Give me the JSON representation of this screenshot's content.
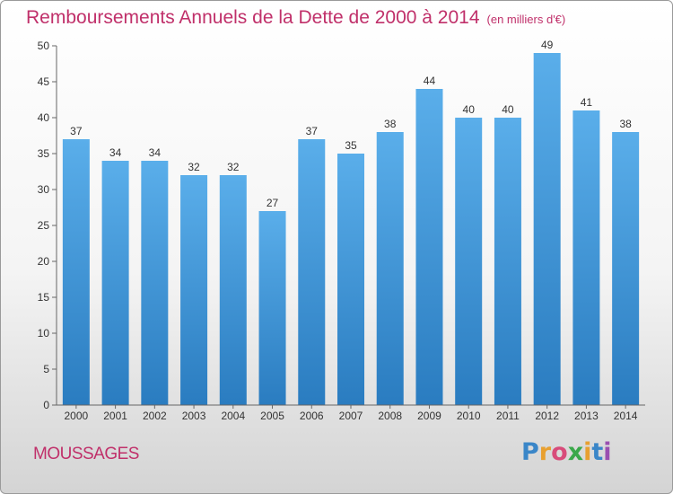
{
  "chart_data": {
    "type": "bar",
    "title": "Remboursements Annuels de la Dette de 2000 à 2014",
    "subtitle": "(en milliers d'€)",
    "categories": [
      "2000",
      "2001",
      "2002",
      "2003",
      "2004",
      "2005",
      "2006",
      "2007",
      "2008",
      "2009",
      "2010",
      "2011",
      "2012",
      "2013",
      "2014"
    ],
    "values": [
      37,
      34,
      34,
      32,
      32,
      27,
      37,
      35,
      38,
      44,
      40,
      40,
      49,
      41,
      38
    ],
    "ylim": [
      0,
      50
    ],
    "yticks": [
      0,
      5,
      10,
      15,
      20,
      25,
      30,
      35,
      40,
      45,
      50
    ],
    "xlabel": "",
    "ylabel": "",
    "grid": false,
    "bar_color_top": "#5aaeea",
    "bar_color_bottom": "#2a7cc0"
  },
  "location": "MOUSSAGES",
  "logo": {
    "letters": [
      "P",
      "r",
      "o",
      "x",
      "i",
      "t",
      "i"
    ],
    "colors": [
      "#3a86c8",
      "#e8a030",
      "#d84b7a",
      "#3aa84a",
      "#e8a030",
      "#3a86c8",
      "#9a4fb0"
    ]
  }
}
